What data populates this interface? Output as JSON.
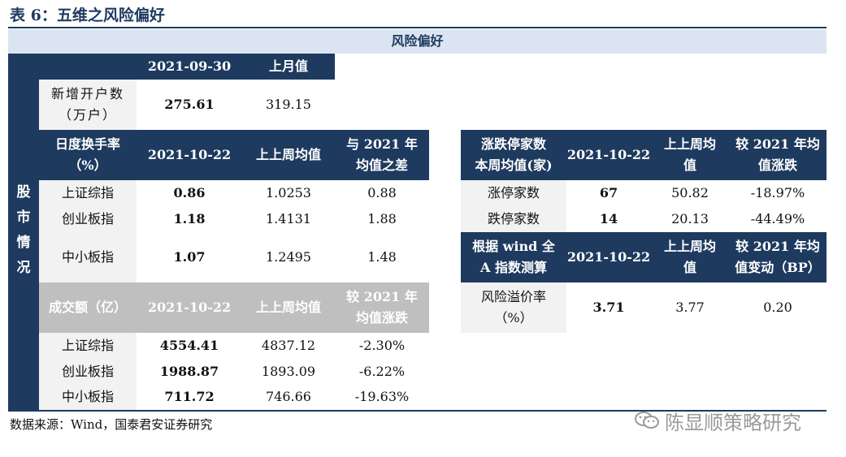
{
  "caption": "表 6：五维之风险偏好",
  "header_title": "风险偏好",
  "side_label": [
    "股",
    "市",
    "情",
    "况"
  ],
  "account_table": {
    "col_date": "2021-09-30",
    "col_prev": "上月值",
    "row_label": [
      "新增开户数",
      "（万户）"
    ],
    "value": "275.61",
    "prev": "319.15"
  },
  "turnover_table": {
    "label": [
      "日度换手率",
      "（%）"
    ],
    "col_date": "2021-10-22",
    "col_prev": "上上周均值",
    "col_diff": [
      "与 2021 年",
      "均值之差"
    ],
    "rows": [
      {
        "name": "上证综指",
        "value": "0.86",
        "prev": "1.0253",
        "diff": "0.88"
      },
      {
        "name": "创业板指",
        "value": "1.18",
        "prev": "1.4131",
        "diff": "1.88"
      },
      {
        "name": "中小板指",
        "value": "1.07",
        "prev": "1.2495",
        "diff": "1.48"
      }
    ]
  },
  "volume_table": {
    "label": "成交额（亿）",
    "col_date": "2021-10-22",
    "col_prev": "上上周均值",
    "col_diff": [
      "较 2021 年",
      "均值涨跌"
    ],
    "rows": [
      {
        "name": "上证综指",
        "value": "4554.41",
        "prev": "4837.12",
        "diff": "-2.30%"
      },
      {
        "name": "创业板指",
        "value": "1988.87",
        "prev": "1893.09",
        "diff": "-6.22%"
      },
      {
        "name": "中小板指",
        "value": "711.72",
        "prev": "746.66",
        "diff": "-19.63%"
      }
    ]
  },
  "limit_table": {
    "label": [
      "涨跌停家数",
      "本周均值(家)"
    ],
    "col_date": "2021-10-22",
    "col_prev": [
      "上上周均",
      "值"
    ],
    "col_diff": [
      "较 2021 年均",
      "值涨跌"
    ],
    "rows": [
      {
        "name": "涨停家数",
        "value": "67",
        "prev": "50.82",
        "diff": "-18.97%"
      },
      {
        "name": "跌停家数",
        "value": "14",
        "prev": "20.13",
        "diff": "-44.49%"
      }
    ]
  },
  "premium_table": {
    "label": [
      "根据 wind 全",
      "A 指数测算"
    ],
    "col_date": "2021-10-22",
    "col_prev": [
      "上上周均",
      "值"
    ],
    "col_diff": [
      "较 2021 年均",
      "值变动（BP）"
    ],
    "row_label": [
      "风险溢价率",
      "（%）"
    ],
    "value": "3.71",
    "prev": "3.77",
    "diff": "0.20"
  },
  "source": "数据来源：Wind，国泰君安证券研究",
  "watermark": "陈显顺策略研究",
  "colors": {
    "navy": "#1e3a5f",
    "gray": "#f2f2f2",
    "dark_gray": "#bfbfbf",
    "header_bg": "#dbe5f1"
  }
}
